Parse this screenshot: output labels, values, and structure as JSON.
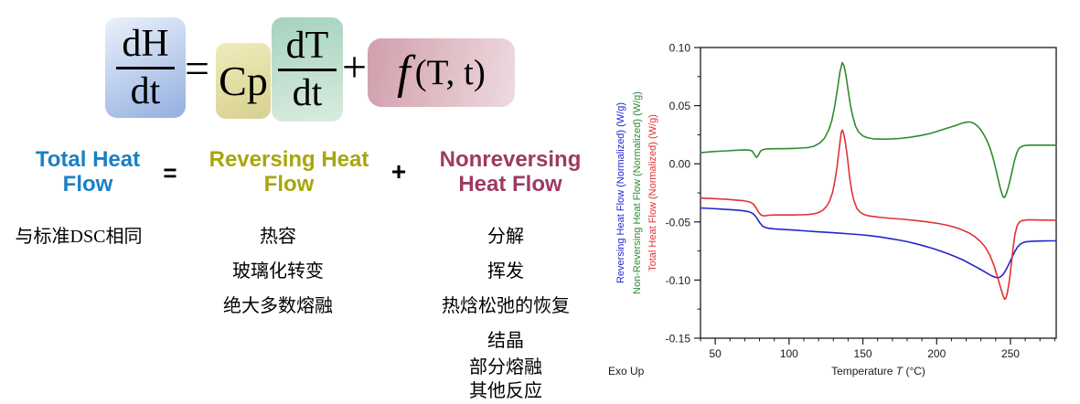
{
  "equation": {
    "term1_num": "dH",
    "term1_den": "dt",
    "equals": "=",
    "term2": "Cp",
    "term3_num": "dT",
    "term3_den": "dt",
    "plus": "+",
    "f_symbol": "f",
    "f_args": "(T, t)",
    "box_colors": {
      "total": "#9fb8e5",
      "cp": "#e2dda0",
      "dtdt": "#b7dbc9",
      "f": "#d9afba"
    }
  },
  "flow": {
    "total": "Total Heat Flow",
    "total_color": "#1b80c4",
    "equals": "=",
    "reversing": "Reversing Heat Flow",
    "reversing_color": "#a8a60a",
    "plus": "+",
    "nonreversing": "Nonreversing Heat Flow",
    "nonreversing_color": "#9d3a62"
  },
  "columns": {
    "total_items": [
      "与标准DSC相同"
    ],
    "reversing_items": [
      "热容",
      "玻璃化转变",
      "绝大多数熔融"
    ],
    "nonreversing_items": [
      "分解",
      "挥发",
      "热焓松弛的恢复",
      "结晶",
      "部分熔融",
      "其他反应"
    ]
  },
  "chart_data": {
    "type": "line",
    "xlabel_prefix": "Temperature ",
    "xlabel_symbol": "T",
    "xlabel_suffix": " (°C)",
    "xlim": [
      40,
      281
    ],
    "ylim": [
      -0.15,
      0.1
    ],
    "x_ticks": [
      50,
      100,
      150,
      200,
      250
    ],
    "x_minor_step": 10,
    "y_ticks": [
      0.1,
      0.05,
      0.0,
      -0.05,
      -0.1,
      -0.15
    ],
    "y_tick_labels": [
      "0.10",
      "0.05",
      "0.00",
      "-0.05",
      "-0.10",
      "-0.15"
    ],
    "exo_label": "Exo Up",
    "frame_color": "#1a1a1a",
    "grid": false,
    "axis_titles": [
      {
        "text": "Reversing Heat Flow (Normalized)  (W/g)",
        "color": "#2424cd"
      },
      {
        "text": "Non-Reversing Heat Flow (Normalized)  (W/g)",
        "color": "#2e8b2e"
      },
      {
        "text": "Total Heat Flow (Normalized)  (W/g)",
        "color": "#e03232"
      }
    ],
    "series": [
      {
        "id": "reversing",
        "name": "Reversing Heat Flow (Normalized)",
        "color": "#2424cd",
        "points": [
          [
            40,
            -0.038
          ],
          [
            46,
            -0.0384
          ],
          [
            52,
            -0.0388
          ],
          [
            58,
            -0.0393
          ],
          [
            64,
            -0.0398
          ],
          [
            69,
            -0.0404
          ],
          [
            72,
            -0.041
          ],
          [
            74,
            -0.0418
          ],
          [
            76,
            -0.0432
          ],
          [
            78,
            -0.0462
          ],
          [
            80,
            -0.0505
          ],
          [
            82,
            -0.0535
          ],
          [
            84,
            -0.0548
          ],
          [
            86,
            -0.0554
          ],
          [
            90,
            -0.056
          ],
          [
            96,
            -0.0565
          ],
          [
            103,
            -0.057
          ],
          [
            110,
            -0.0576
          ],
          [
            118,
            -0.0583
          ],
          [
            126,
            -0.059
          ],
          [
            134,
            -0.0597
          ],
          [
            142,
            -0.0604
          ],
          [
            150,
            -0.0612
          ],
          [
            156,
            -0.062
          ],
          [
            162,
            -0.063
          ],
          [
            168,
            -0.0642
          ],
          [
            174,
            -0.0655
          ],
          [
            180,
            -0.067
          ],
          [
            186,
            -0.0688
          ],
          [
            192,
            -0.0708
          ],
          [
            198,
            -0.073
          ],
          [
            203,
            -0.0752
          ],
          [
            208,
            -0.0775
          ],
          [
            213,
            -0.08
          ],
          [
            218,
            -0.0828
          ],
          [
            222,
            -0.0855
          ],
          [
            226,
            -0.0882
          ],
          [
            230,
            -0.091
          ],
          [
            233,
            -0.0932
          ],
          [
            236,
            -0.0955
          ],
          [
            238,
            -0.0968
          ],
          [
            240,
            -0.0977
          ],
          [
            241.5,
            -0.098
          ],
          [
            243,
            -0.0975
          ],
          [
            245,
            -0.0952
          ],
          [
            247,
            -0.0912
          ],
          [
            249,
            -0.0862
          ],
          [
            251,
            -0.0805
          ],
          [
            253,
            -0.0752
          ],
          [
            255,
            -0.0712
          ],
          [
            257,
            -0.0688
          ],
          [
            259,
            -0.0676
          ],
          [
            261,
            -0.067
          ],
          [
            265,
            -0.0666
          ],
          [
            270,
            -0.0664
          ],
          [
            276,
            -0.0663
          ],
          [
            281,
            -0.0663
          ]
        ]
      },
      {
        "id": "nonreversing",
        "name": "Non-Reversing Heat Flow (Normalized)",
        "color": "#2e8b2e",
        "points": [
          [
            40,
            0.0095
          ],
          [
            46,
            0.0102
          ],
          [
            52,
            0.0108
          ],
          [
            58,
            0.0112
          ],
          [
            64,
            0.0116
          ],
          [
            70,
            0.012
          ],
          [
            73,
            0.0118
          ],
          [
            75,
            0.011
          ],
          [
            77,
            0.007
          ],
          [
            78,
            0.0055
          ],
          [
            79,
            0.007
          ],
          [
            80.5,
            0.0105
          ],
          [
            82,
            0.012
          ],
          [
            85,
            0.0128
          ],
          [
            90,
            0.013
          ],
          [
            96,
            0.013
          ],
          [
            102,
            0.0132
          ],
          [
            108,
            0.0135
          ],
          [
            113,
            0.014
          ],
          [
            117,
            0.0152
          ],
          [
            121,
            0.018
          ],
          [
            124,
            0.022
          ],
          [
            127,
            0.0295
          ],
          [
            129,
            0.0375
          ],
          [
            131,
            0.05
          ],
          [
            133,
            0.066
          ],
          [
            134.5,
            0.079
          ],
          [
            136,
            0.087
          ],
          [
            137.2,
            0.0845
          ],
          [
            138.5,
            0.0765
          ],
          [
            140,
            0.0635
          ],
          [
            141.5,
            0.051
          ],
          [
            143,
            0.0415
          ],
          [
            145,
            0.0325
          ],
          [
            147,
            0.0275
          ],
          [
            150,
            0.024
          ],
          [
            153,
            0.0225
          ],
          [
            157,
            0.0215
          ],
          [
            162,
            0.0212
          ],
          [
            168,
            0.0213
          ],
          [
            175,
            0.0218
          ],
          [
            182,
            0.0228
          ],
          [
            189,
            0.0243
          ],
          [
            196,
            0.0262
          ],
          [
            202,
            0.0285
          ],
          [
            208,
            0.031
          ],
          [
            213,
            0.033
          ],
          [
            217,
            0.0348
          ],
          [
            220,
            0.0358
          ],
          [
            222,
            0.036
          ],
          [
            224,
            0.0355
          ],
          [
            226,
            0.0342
          ],
          [
            228,
            0.032
          ],
          [
            230,
            0.029
          ],
          [
            232,
            0.025
          ],
          [
            234,
            0.0202
          ],
          [
            236,
            0.014
          ],
          [
            238,
            0.006
          ],
          [
            240,
            -0.004
          ],
          [
            242,
            -0.015
          ],
          [
            243.5,
            -0.023
          ],
          [
            245,
            -0.0285
          ],
          [
            246,
            -0.029
          ],
          [
            247,
            -0.0265
          ],
          [
            248.5,
            -0.0205
          ],
          [
            250,
            -0.0125
          ],
          [
            251.5,
            -0.004
          ],
          [
            253,
            0.004
          ],
          [
            254.5,
            0.01
          ],
          [
            256,
            0.0135
          ],
          [
            258,
            0.0152
          ],
          [
            260,
            0.0158
          ],
          [
            264,
            0.016
          ],
          [
            270,
            0.016
          ],
          [
            276,
            0.016
          ],
          [
            281,
            0.016
          ]
        ]
      },
      {
        "id": "total",
        "name": "Total Heat Flow (Normalized)",
        "color": "#e03232",
        "points": [
          [
            40,
            -0.0295
          ],
          [
            46,
            -0.0298
          ],
          [
            52,
            -0.0302
          ],
          [
            58,
            -0.0306
          ],
          [
            64,
            -0.0312
          ],
          [
            69,
            -0.0318
          ],
          [
            72,
            -0.0325
          ],
          [
            74,
            -0.0332
          ],
          [
            76,
            -0.0348
          ],
          [
            78,
            -0.0385
          ],
          [
            79.5,
            -0.042
          ],
          [
            81,
            -0.044
          ],
          [
            82.5,
            -0.0447
          ],
          [
            84,
            -0.0447
          ],
          [
            86,
            -0.0443
          ],
          [
            90,
            -0.044
          ],
          [
            96,
            -0.044
          ],
          [
            102,
            -0.044
          ],
          [
            108,
            -0.0439
          ],
          [
            113,
            -0.0436
          ],
          [
            117,
            -0.043
          ],
          [
            120,
            -0.042
          ],
          [
            123,
            -0.0398
          ],
          [
            125.5,
            -0.0365
          ],
          [
            127.5,
            -0.032
          ],
          [
            129.5,
            -0.0245
          ],
          [
            131,
            -0.015
          ],
          [
            132.5,
            -0.003
          ],
          [
            134,
            0.013
          ],
          [
            135.3,
            0.0265
          ],
          [
            136,
            0.029
          ],
          [
            136.8,
            0.0272
          ],
          [
            138,
            0.0195
          ],
          [
            139.5,
            0.006
          ],
          [
            141,
            -0.011
          ],
          [
            142.5,
            -0.0235
          ],
          [
            144,
            -0.032
          ],
          [
            146,
            -0.0385
          ],
          [
            148.5,
            -0.042
          ],
          [
            151,
            -0.0438
          ],
          [
            154,
            -0.0448
          ],
          [
            158,
            -0.0455
          ],
          [
            163,
            -0.0462
          ],
          [
            170,
            -0.047
          ],
          [
            178,
            -0.0478
          ],
          [
            186,
            -0.0488
          ],
          [
            194,
            -0.05
          ],
          [
            201,
            -0.0513
          ],
          [
            207,
            -0.0528
          ],
          [
            212,
            -0.0545
          ],
          [
            217,
            -0.0567
          ],
          [
            222,
            -0.0595
          ],
          [
            226,
            -0.0628
          ],
          [
            230,
            -0.0672
          ],
          [
            233,
            -0.0718
          ],
          [
            236,
            -0.0785
          ],
          [
            239,
            -0.088
          ],
          [
            241.5,
            -0.0985
          ],
          [
            243.5,
            -0.1075
          ],
          [
            245,
            -0.1135
          ],
          [
            246,
            -0.1165
          ],
          [
            247,
            -0.1155
          ],
          [
            248,
            -0.1105
          ],
          [
            249.2,
            -0.101
          ],
          [
            250.5,
            -0.087
          ],
          [
            251.8,
            -0.072
          ],
          [
            253,
            -0.061
          ],
          [
            254.5,
            -0.0535
          ],
          [
            256,
            -0.0502
          ],
          [
            258,
            -0.0488
          ],
          [
            261,
            -0.0483
          ],
          [
            266,
            -0.0483
          ],
          [
            272,
            -0.0484
          ],
          [
            281,
            -0.0486
          ]
        ]
      }
    ]
  }
}
